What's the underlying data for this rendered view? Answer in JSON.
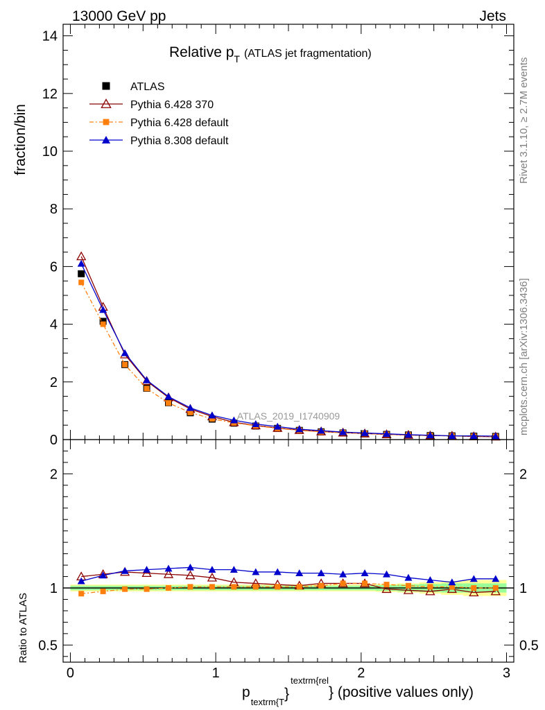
{
  "header": {
    "left": "13000 GeV pp",
    "right": "Jets"
  },
  "side_labels": {
    "rivet": "Rivet 3.1.10, ≥ 2.7M events",
    "mcplots": "mcplots.cern.ch [arXiv:1306.3436]"
  },
  "chart_data": {
    "type": "line",
    "title": "Relative p_T (ATLAS jet fragmentation)",
    "title_main": "Relative p",
    "title_sub": "T",
    "title_tail": "(ATLAS jet fragmentation)",
    "analysis_label": "ATLAS_2019_I1740909",
    "xlabel_p": "p",
    "xlabel_sub": "textrm{T",
    "xlabel_sup": "textrm{rel",
    "xlabel_tail": "} (positive values only)",
    "ylabel": "fraction/bin",
    "ratio_ylabel": "Ratio to ATLAS",
    "xlim": [
      -0.05,
      3.05
    ],
    "ylim": [
      0,
      14.4
    ],
    "ratio_ylim": [
      0.35,
      2.3
    ],
    "x_ticks": [
      0,
      1,
      2,
      3
    ],
    "y_ticks": [
      0,
      2,
      4,
      6,
      8,
      10,
      12,
      14
    ],
    "ratio_ticks": [
      0.5,
      1,
      2
    ],
    "x": [
      0.075,
      0.225,
      0.375,
      0.525,
      0.675,
      0.825,
      0.975,
      1.125,
      1.275,
      1.425,
      1.575,
      1.725,
      1.875,
      2.025,
      2.175,
      2.325,
      2.475,
      2.625,
      2.775,
      2.925
    ],
    "series": [
      {
        "name": "ATLAS",
        "marker": "square",
        "color": "#000000",
        "values": [
          5.75,
          4.1,
          2.6,
          1.78,
          1.28,
          0.93,
          0.71,
          0.57,
          0.47,
          0.39,
          0.32,
          0.27,
          0.23,
          0.2,
          0.18,
          0.16,
          0.14,
          0.13,
          0.12,
          0.11
        ],
        "ratio": [
          1,
          1,
          1,
          1,
          1,
          1,
          1,
          1,
          1,
          1,
          1,
          1,
          1,
          1,
          1,
          1,
          1,
          1,
          1,
          1
        ]
      },
      {
        "name": "Pythia 6.428 370",
        "marker": "open-triangle",
        "color": "#8b0000",
        "values": [
          6.35,
          4.6,
          2.95,
          2.03,
          1.46,
          1.06,
          0.8,
          0.6,
          0.49,
          0.4,
          0.33,
          0.28,
          0.24,
          0.21,
          0.18,
          0.16,
          0.14,
          0.13,
          0.11,
          0.1
        ],
        "ratio": [
          1.1,
          1.12,
          1.14,
          1.13,
          1.12,
          1.11,
          1.09,
          1.05,
          1.04,
          1.03,
          1.02,
          1.04,
          1.04,
          1.04,
          0.99,
          0.98,
          0.97,
          0.99,
          0.96,
          0.97
        ]
      },
      {
        "name": "Pythia 6.428 default",
        "marker": "square-small",
        "color": "#ff7f0e",
        "values": [
          5.45,
          4.0,
          2.6,
          1.77,
          1.27,
          0.94,
          0.72,
          0.58,
          0.48,
          0.39,
          0.32,
          0.27,
          0.24,
          0.21,
          0.18,
          0.16,
          0.14,
          0.13,
          0.12,
          0.11
        ],
        "ratio": [
          0.95,
          0.97,
          0.99,
          0.99,
          1.0,
          1.01,
          1.01,
          1.01,
          1.01,
          1.01,
          1.01,
          1.02,
          1.04,
          1.04,
          1.03,
          1.02,
          1.01,
          1.01,
          1.0,
          1.0
        ]
      },
      {
        "name": "Pythia 8.308 default",
        "marker": "filled-triangle",
        "color": "#0000cd",
        "values": [
          6.1,
          4.5,
          3.0,
          2.06,
          1.49,
          1.1,
          0.84,
          0.67,
          0.54,
          0.45,
          0.36,
          0.31,
          0.26,
          0.23,
          0.2,
          0.17,
          0.15,
          0.13,
          0.13,
          0.12
        ],
        "ratio": [
          1.06,
          1.11,
          1.15,
          1.16,
          1.17,
          1.18,
          1.16,
          1.16,
          1.14,
          1.14,
          1.13,
          1.13,
          1.12,
          1.13,
          1.12,
          1.09,
          1.07,
          1.05,
          1.08,
          1.08
        ]
      }
    ],
    "band_yellow_half": [
      0.03,
      0.03,
      0.03,
      0.03,
      0.03,
      0.03,
      0.03,
      0.03,
      0.03,
      0.03,
      0.03,
      0.03,
      0.03,
      0.03,
      0.035,
      0.04,
      0.05,
      0.06,
      0.07,
      0.07
    ],
    "band_green_half": [
      0.02,
      0.02,
      0.02,
      0.02,
      0.02,
      0.02,
      0.02,
      0.02,
      0.02,
      0.02,
      0.02,
      0.02,
      0.02,
      0.02,
      0.025,
      0.03,
      0.035,
      0.04,
      0.04,
      0.04
    ],
    "legend_placement": "top-left",
    "grid": false
  }
}
